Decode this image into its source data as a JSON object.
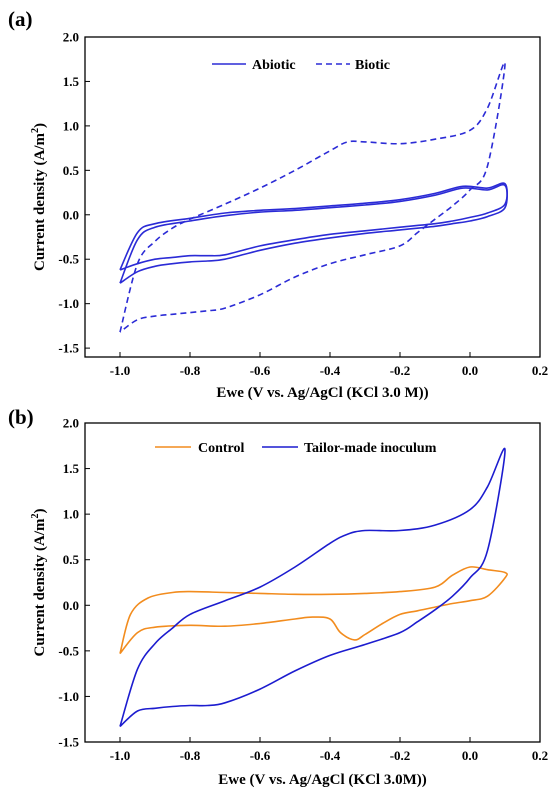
{
  "chart_data": [
    {
      "type": "line",
      "panel_label": "(a)",
      "xlabel": "Ewe (V vs. Ag/AgCl (KCl 3.0 M))",
      "ylabel": "Current density (A/m2)",
      "ylabel_main": "Current density (A/m",
      "ylabel_sup": "2",
      "ylabel_close": ")",
      "xlim": [
        -1.1,
        0.2
      ],
      "ylim": [
        -1.6,
        2.0
      ],
      "xticks": [
        "-1.0",
        "-0.8",
        "-0.6",
        "-0.4",
        "-0.2",
        "0.0",
        "0.2"
      ],
      "yticks": [
        "-1.5",
        "-1.0",
        "-0.5",
        "0.0",
        "0.5",
        "1.0",
        "1.5",
        "2.0"
      ],
      "legend_position": "top-center",
      "grid": false,
      "series": [
        {
          "name": "Abiotic",
          "color": "#2b2bd6",
          "dash": "solid",
          "loops": [
            {
              "x": [
                -1.0,
                -0.95,
                -0.9,
                -0.8,
                -0.7,
                -0.6,
                -0.5,
                -0.4,
                -0.3,
                -0.2,
                -0.1,
                -0.02,
                0.05,
                0.1,
                0.1,
                0.05,
                0.0,
                -0.05,
                -0.1,
                -0.2,
                -0.3,
                -0.4,
                -0.5,
                -0.6,
                -0.7,
                -0.75,
                -0.8,
                -0.85,
                -0.9,
                -0.95,
                -1.0
              ],
              "y": [
                -0.62,
                -0.2,
                -0.1,
                -0.04,
                0.02,
                0.05,
                0.07,
                0.1,
                0.13,
                0.17,
                0.24,
                0.32,
                0.3,
                0.35,
                0.12,
                0.02,
                -0.03,
                -0.07,
                -0.1,
                -0.14,
                -0.18,
                -0.22,
                -0.28,
                -0.35,
                -0.45,
                -0.46,
                -0.46,
                -0.48,
                -0.5,
                -0.55,
                -0.62
              ]
            },
            {
              "x": [
                -1.0,
                -0.95,
                -0.9,
                -0.8,
                -0.7,
                -0.6,
                -0.5,
                -0.4,
                -0.3,
                -0.2,
                -0.1,
                -0.02,
                0.05,
                0.1,
                0.1,
                0.05,
                0.0,
                -0.05,
                -0.1,
                -0.2,
                -0.3,
                -0.4,
                -0.5,
                -0.6,
                -0.7,
                -0.75,
                -0.8,
                -0.85,
                -0.9,
                -0.95,
                -1.0
              ],
              "y": [
                -0.77,
                -0.28,
                -0.14,
                -0.07,
                -0.01,
                0.03,
                0.05,
                0.08,
                0.11,
                0.15,
                0.22,
                0.3,
                0.28,
                0.33,
                0.08,
                -0.02,
                -0.07,
                -0.1,
                -0.13,
                -0.17,
                -0.21,
                -0.26,
                -0.32,
                -0.4,
                -0.5,
                -0.52,
                -0.53,
                -0.55,
                -0.58,
                -0.64,
                -0.77
              ]
            }
          ]
        },
        {
          "name": "Biotic",
          "color": "#2b2bd6",
          "dash": "dashed",
          "loops": [
            {
              "x": [
                -1.0,
                -0.95,
                -0.9,
                -0.85,
                -0.8,
                -0.7,
                -0.6,
                -0.5,
                -0.4,
                -0.35,
                -0.3,
                -0.2,
                -0.1,
                0.0,
                0.05,
                0.1,
                0.05,
                0.0,
                -0.05,
                -0.1,
                -0.15,
                -0.2,
                -0.3,
                -0.4,
                -0.5,
                -0.6,
                -0.7,
                -0.75,
                -0.8,
                -0.85,
                -0.9,
                -0.95,
                -1.0
              ],
              "y": [
                -1.32,
                -0.55,
                -0.3,
                -0.15,
                -0.05,
                0.12,
                0.3,
                0.5,
                0.72,
                0.82,
                0.82,
                0.8,
                0.85,
                0.95,
                1.2,
                1.7,
                0.55,
                0.28,
                0.1,
                -0.05,
                -0.2,
                -0.35,
                -0.45,
                -0.55,
                -0.7,
                -0.9,
                -1.05,
                -1.08,
                -1.1,
                -1.12,
                -1.14,
                -1.18,
                -1.32
              ]
            }
          ]
        }
      ]
    },
    {
      "type": "line",
      "panel_label": "(b)",
      "xlabel": "Ewe (V vs. Ag/AgCl (KCl 3.0M))",
      "ylabel": "Current density (A/m2)",
      "ylabel_main": "Current density (A/m",
      "ylabel_sup": "2",
      "ylabel_close": ")",
      "xlim": [
        -1.1,
        0.2
      ],
      "ylim": [
        -1.5,
        2.0
      ],
      "xticks": [
        "-1.0",
        "-0.8",
        "-0.6",
        "-0.4",
        "-0.2",
        "0.0",
        "0.2"
      ],
      "yticks": [
        "-1.5",
        "-1.0",
        "-0.5",
        "0.0",
        "0.5",
        "1.0",
        "1.5",
        "2.0"
      ],
      "legend_position": "top-center",
      "grid": false,
      "series": [
        {
          "name": "Control",
          "color": "#f28c1e",
          "dash": "solid",
          "loops": [
            {
              "x": [
                -1.0,
                -0.97,
                -0.92,
                -0.85,
                -0.8,
                -0.7,
                -0.6,
                -0.5,
                -0.4,
                -0.3,
                -0.2,
                -0.1,
                -0.05,
                0.0,
                0.05,
                0.1,
                0.1,
                0.05,
                0.0,
                -0.05,
                -0.1,
                -0.15,
                -0.2,
                -0.25,
                -0.3,
                -0.33,
                -0.37,
                -0.4,
                -0.45,
                -0.5,
                -0.6,
                -0.7,
                -0.8,
                -0.9,
                -0.95,
                -1.0
              ],
              "y": [
                -0.53,
                -0.1,
                0.08,
                0.14,
                0.15,
                0.14,
                0.13,
                0.12,
                0.12,
                0.13,
                0.15,
                0.2,
                0.33,
                0.42,
                0.39,
                0.36,
                0.3,
                0.1,
                0.05,
                0.02,
                -0.02,
                -0.06,
                -0.1,
                -0.2,
                -0.32,
                -0.38,
                -0.3,
                -0.15,
                -0.13,
                -0.15,
                -0.2,
                -0.23,
                -0.22,
                -0.24,
                -0.3,
                -0.53
              ]
            }
          ]
        },
        {
          "name": "Tailor-made inoculum",
          "color": "#1c1ccf",
          "dash": "solid",
          "loops": [
            {
              "x": [
                -1.0,
                -0.95,
                -0.9,
                -0.85,
                -0.8,
                -0.7,
                -0.6,
                -0.5,
                -0.4,
                -0.35,
                -0.3,
                -0.2,
                -0.1,
                0.0,
                0.05,
                0.1,
                0.05,
                0.0,
                -0.05,
                -0.1,
                -0.15,
                -0.2,
                -0.3,
                -0.4,
                -0.5,
                -0.6,
                -0.7,
                -0.75,
                -0.8,
                -0.85,
                -0.9,
                -0.95,
                -1.0
              ],
              "y": [
                -1.33,
                -0.7,
                -0.42,
                -0.25,
                -0.1,
                0.05,
                0.2,
                0.42,
                0.68,
                0.78,
                0.82,
                0.82,
                0.88,
                1.05,
                1.3,
                1.7,
                0.6,
                0.3,
                0.1,
                -0.05,
                -0.18,
                -0.3,
                -0.43,
                -0.55,
                -0.72,
                -0.92,
                -1.07,
                -1.1,
                -1.1,
                -1.11,
                -1.13,
                -1.16,
                -1.33
              ]
            }
          ]
        }
      ]
    }
  ]
}
